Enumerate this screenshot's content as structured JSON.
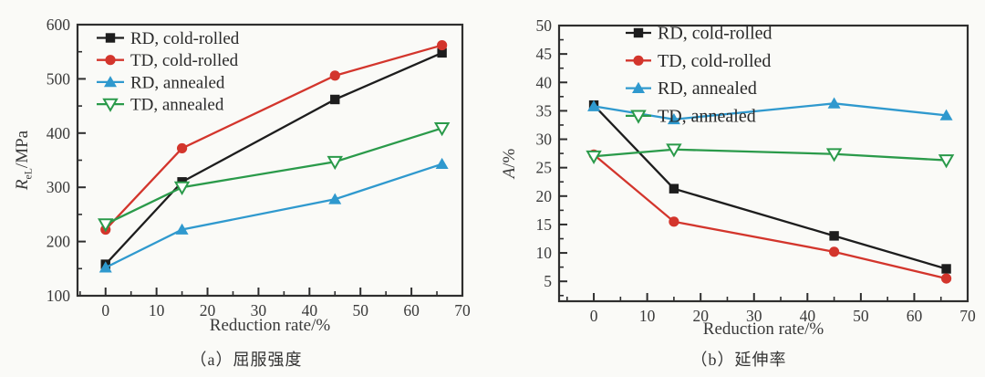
{
  "figure": {
    "background": "#fafaf7",
    "text_color": "#3a3a3a",
    "axis_color": "#2e2e2e"
  },
  "chart_data": [
    {
      "type": "line",
      "id": "yield-strength",
      "title": "（a）屈服强度",
      "xlabel": "Reduction rate/%",
      "ylabel": {
        "var": "R",
        "sub": "eL",
        "unit": "/MPa"
      },
      "x": [
        0,
        15,
        45,
        66
      ],
      "xlim": [
        -5.5,
        70
      ],
      "ylim": [
        100,
        600
      ],
      "xticks": [
        0,
        10,
        20,
        30,
        40,
        50,
        60,
        70
      ],
      "yticks": [
        100,
        200,
        300,
        400,
        500,
        600
      ],
      "x_minor_step": 5,
      "y_minor_step": 50,
      "grid": false,
      "legend_position": "top-left",
      "series": [
        {
          "name": "RD, cold-rolled",
          "color": "#1d1d1d",
          "marker": "square",
          "values": [
            158,
            310,
            462,
            548
          ]
        },
        {
          "name": "TD, cold-rolled",
          "color": "#d3352c",
          "marker": "circle",
          "values": [
            222,
            372,
            506,
            562
          ]
        },
        {
          "name": "RD, annealed",
          "color": "#2f99ce",
          "marker": "triangle-up",
          "values": [
            152,
            222,
            278,
            343
          ]
        },
        {
          "name": "TD, annealed",
          "color": "#2a9a4a",
          "marker": "triangle-down-open",
          "values": [
            232,
            300,
            347,
            409
          ]
        }
      ]
    },
    {
      "type": "line",
      "id": "elongation",
      "title": "（b）延伸率",
      "xlabel": "Reduction rate/%",
      "ylabel": {
        "var": "A",
        "sub": "",
        "unit": "/%"
      },
      "x": [
        0,
        15,
        45,
        66
      ],
      "xlim": [
        -6.5,
        70
      ],
      "ylim": [
        1.5,
        50
      ],
      "xticks": [
        0,
        10,
        20,
        30,
        40,
        50,
        60,
        70
      ],
      "yticks": [
        5,
        10,
        15,
        20,
        25,
        30,
        35,
        40,
        45,
        50
      ],
      "x_minor_step": 5,
      "y_minor_step": 2.5,
      "grid": false,
      "legend_position": "top-left",
      "series": [
        {
          "name": "RD, cold-rolled",
          "color": "#1d1d1d",
          "marker": "square",
          "values": [
            36.0,
            21.3,
            13.0,
            7.2
          ]
        },
        {
          "name": "TD, cold-rolled",
          "color": "#d3352c",
          "marker": "circle",
          "values": [
            27.3,
            15.5,
            10.2,
            5.5
          ]
        },
        {
          "name": "RD, annealed",
          "color": "#2f99ce",
          "marker": "triangle-up",
          "values": [
            35.8,
            33.5,
            36.3,
            34.2
          ]
        },
        {
          "name": "TD, annealed",
          "color": "#2a9a4a",
          "marker": "triangle-down-open",
          "values": [
            27.0,
            28.2,
            27.4,
            26.3
          ]
        }
      ]
    }
  ]
}
